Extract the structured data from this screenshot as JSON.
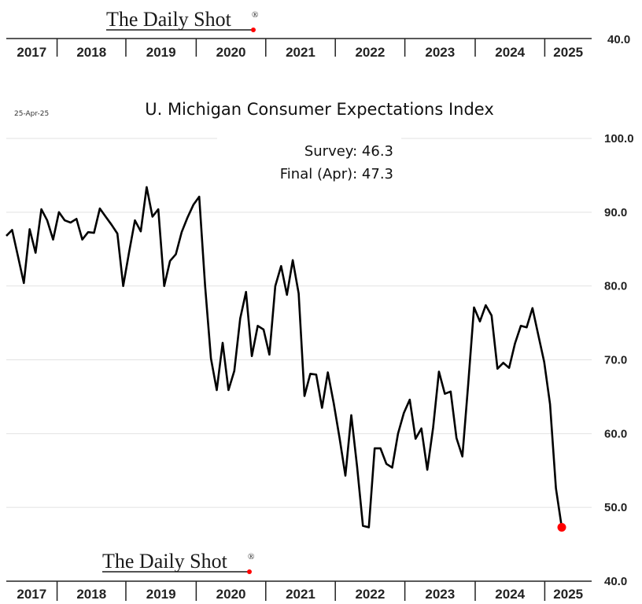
{
  "branding": {
    "name": "The Daily Shot",
    "mark": "®"
  },
  "date_stamp": "25-Apr-25",
  "annotations": {
    "survey": "Survey:  46.3",
    "final": "Final (Apr):  47.3"
  },
  "top_axis": {
    "value_label": "40.0"
  },
  "chart_data": {
    "type": "line",
    "title": "U. Michigan Consumer Expectations Index",
    "xlabel": "",
    "ylabel": "",
    "x_tick_labels": [
      "2017",
      "2018",
      "2019",
      "2020",
      "2021",
      "2022",
      "2023",
      "2024",
      "2025"
    ],
    "ylim": [
      40,
      100
    ],
    "y_ticks": [
      40,
      50,
      60,
      70,
      80,
      90,
      100
    ],
    "y_tick_labels": [
      "40.0",
      "50.0",
      "60.0",
      "70.0",
      "80.0",
      "90.0",
      "100.0"
    ],
    "y_axis_side": "right",
    "grid": true,
    "x_start": "2016-11",
    "series": [
      {
        "values": [
          86.8,
          87.6,
          84.0,
          80.4,
          87.7,
          84.5,
          90.4,
          88.9,
          86.3,
          90.0,
          88.9,
          88.6,
          89.1,
          86.3,
          87.3,
          87.2,
          90.5,
          89.4,
          88.3,
          87.1,
          80.0,
          84.6,
          88.9,
          87.4,
          93.4,
          89.4,
          90.4,
          80.0,
          83.4,
          84.3,
          87.3,
          89.3,
          91.0,
          92.1,
          80.0,
          70.2,
          65.9,
          72.3,
          65.9,
          68.5,
          75.6,
          79.2,
          70.5,
          74.6,
          74.1,
          70.7,
          80.0,
          82.7,
          78.8,
          83.5,
          79.0,
          65.1,
          68.1,
          68.0,
          63.5,
          68.3,
          64.1,
          59.4,
          54.3,
          62.5,
          55.5,
          47.5,
          47.3,
          58.0,
          58.0,
          55.9,
          55.4,
          60.0,
          62.8,
          64.6,
          59.3,
          60.7,
          55.1,
          60.8,
          68.4,
          65.4,
          65.7,
          59.4,
          56.9,
          66.7,
          77.1,
          75.2,
          77.4,
          76.0,
          68.8,
          69.6,
          68.9,
          72.2,
          74.6,
          74.4,
          77.0,
          73.3,
          69.7,
          64.0,
          52.6,
          47.3
        ]
      }
    ],
    "final_point_highlight": {
      "value": 47.3,
      "color": "#ff0000"
    },
    "line_color": "#000000"
  }
}
